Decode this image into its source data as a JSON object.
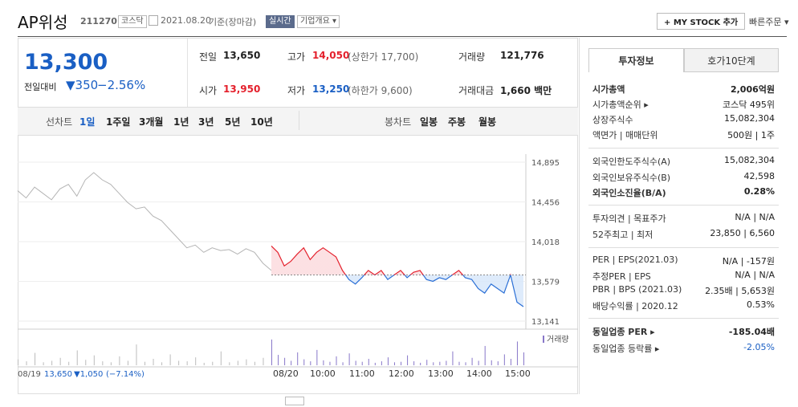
{
  "header": {
    "name": "AP위성",
    "code": "211270",
    "market": "코스닥",
    "date": "2021.08.20",
    "basis": "기준(장마감)",
    "realtime": "실시간",
    "overview": "기업개요 ▾",
    "mystock": "+ MY STOCK 추가",
    "quick_order": "빠른주문 ▾"
  },
  "quote": {
    "price": "13,300",
    "change_label": "전일대비",
    "change": "▼350",
    "change_pct": "−2.56%"
  },
  "summary": [
    [
      {
        "label": "전일",
        "value": "13,650"
      },
      {
        "label": "고가",
        "value": "14,050",
        "note": "(상한가 17,700)"
      },
      {
        "label": "거래량",
        "value": "121,776"
      }
    ],
    [
      {
        "label": "시가",
        "value": "13,950"
      },
      {
        "label": "저가",
        "value": "13,250",
        "note": "(하한가 9,600)"
      },
      {
        "label": "거래대금",
        "value": "1,660 백만"
      }
    ]
  ],
  "tabs": {
    "line_label": "선차트",
    "line": [
      "1일",
      "1주일",
      "3개월",
      "1년",
      "3년",
      "5년",
      "10년"
    ],
    "candle_label": "봉차트",
    "candle": [
      "일봉",
      "주봉",
      "월봉"
    ]
  },
  "chart_data": {
    "type": "line",
    "series": [
      {
        "name": "08/19",
        "color": "#b4b4b4",
        "values": [
          14580,
          14500,
          14620,
          14550,
          14480,
          14600,
          14650,
          14520,
          14700,
          14780,
          14700,
          14650,
          14550,
          14450,
          14380,
          14400,
          14300,
          14250,
          14150,
          14050,
          13950,
          13980,
          13900,
          13950,
          13920,
          13930,
          13880,
          13940,
          13900,
          13780,
          13700
        ]
      },
      {
        "name": "08/20",
        "up_color": "#e4202c",
        "down_color": "#2a6fd6",
        "values": [
          13970,
          13900,
          13750,
          13800,
          13880,
          13950,
          13820,
          13900,
          13950,
          13900,
          13850,
          13700,
          13600,
          13550,
          13620,
          13700,
          13650,
          13700,
          13600,
          13650,
          13700,
          13620,
          13680,
          13700,
          13600,
          13580,
          13620,
          13600,
          13650,
          13700,
          13620,
          13600,
          13500,
          13450,
          13550,
          13500,
          13450,
          13650,
          13350,
          13300
        ]
      }
    ],
    "reference": 13650,
    "ylim": [
      13141,
      14895
    ],
    "yticks": [
      {
        "value": 14895,
        "label": "14,895"
      },
      {
        "value": 14456,
        "label": "14,456"
      },
      {
        "value": 14018,
        "label": "14,018"
      },
      {
        "value": 13579,
        "label": "13,579"
      },
      {
        "value": 13141,
        "label": "13,141"
      }
    ],
    "volume": {
      "name": "거래량",
      "vlim": [
        0,
        6000
      ],
      "prev": [
        1200,
        800,
        2500,
        600,
        900,
        1500,
        700,
        3000,
        1100,
        2000,
        800,
        600,
        1800,
        900,
        4200,
        700,
        1300,
        600,
        2200,
        900,
        800,
        1600,
        500,
        700,
        2800,
        600,
        900,
        1200,
        700,
        1500,
        800
      ],
      "today": [
        5200,
        2100,
        1500,
        900,
        2600,
        1200,
        800,
        3100,
        1000,
        700,
        1800,
        600,
        2400,
        900,
        700,
        1300,
        500,
        800,
        1600,
        600,
        700,
        2000,
        800,
        500,
        1100,
        600,
        700,
        900,
        2800,
        700,
        600,
        1500,
        900,
        3900,
        1000,
        800,
        2200,
        1300,
        4800,
        2600
      ]
    },
    "x_labels": [
      "08/20",
      "10:00",
      "11:00",
      "12:00",
      "13:00",
      "14:00",
      "15:00"
    ],
    "prev_info": {
      "date": "08/19",
      "close": "13,650",
      "change": "▼1,050",
      "pct": "(−7.14%)"
    }
  },
  "side": {
    "tabs": [
      "투자정보",
      "호가10단계"
    ],
    "groups": [
      [
        {
          "label": "시가총액",
          "value": "2,006억원",
          "strong": true
        },
        {
          "label": "시가총액순위 ▸",
          "value": "코스닥 495위"
        },
        {
          "label": "상장주식수",
          "value": "15,082,304"
        },
        {
          "label": "액면가 | 매매단위",
          "value": "500원 | 1주"
        }
      ],
      [
        {
          "label": "외국인한도주식수(A)",
          "value": "15,082,304"
        },
        {
          "label": "외국인보유주식수(B)",
          "value": "42,598"
        },
        {
          "label": "외국인소진율(B/A)",
          "value": "0.28%",
          "strong": true
        }
      ],
      [
        {
          "label": "투자의견 | 목표주가",
          "value": "N/A | N/A"
        },
        {
          "label": "52주최고 | 최저",
          "value": "23,850 | 6,560"
        }
      ],
      [
        {
          "label": "PER | EPS(2021.03)",
          "value": "N/A | -157원"
        },
        {
          "label": "추정PER | EPS",
          "value": "N/A | N/A"
        },
        {
          "label": "PBR | BPS (2021.03)",
          "value": "2.35배 | 5,653원"
        },
        {
          "label": "배당수익률 | 2020.12",
          "value": "0.53%"
        }
      ],
      [
        {
          "label": "동일업종 PER ▸",
          "value": "-185.04배",
          "strong": true
        },
        {
          "label": "동일업종 등락률 ▸",
          "value": "-2.05%"
        }
      ]
    ]
  }
}
